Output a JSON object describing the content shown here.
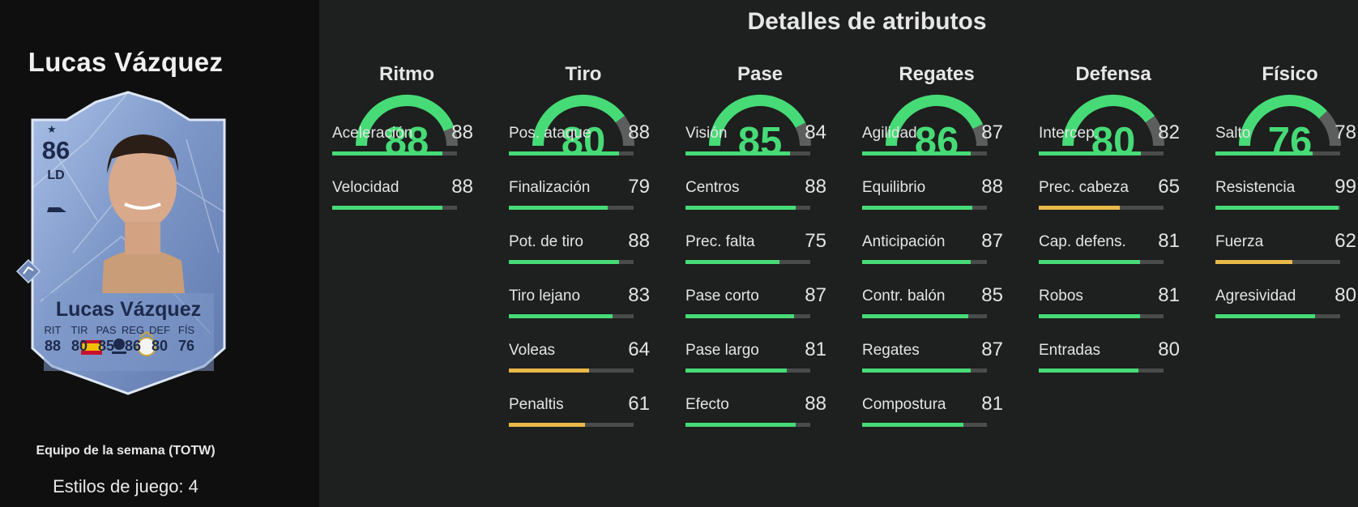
{
  "player": {
    "name": "Lucas Vázquez",
    "rating": "86",
    "position": "LD",
    "card_stats": [
      {
        "label": "RIT",
        "value": "88"
      },
      {
        "label": "TIR",
        "value": "80"
      },
      {
        "label": "PAS",
        "value": "85"
      },
      {
        "label": "REG",
        "value": "86"
      },
      {
        "label": "DEF",
        "value": "80"
      },
      {
        "label": "FÍS",
        "value": "76"
      }
    ],
    "promo": "Equipo de la semana (TOTW)",
    "playstyles": "Estilos de juego: 4"
  },
  "section_title": "Detalles de atributos",
  "colors": {
    "green": "#46db76",
    "yellow": "#e8b948",
    "track": "#4a4c4c",
    "gauge_rest": "#5c5e5e"
  },
  "categories": [
    {
      "name": "Ritmo",
      "value": "88",
      "attrs": [
        {
          "name": "Aceleración",
          "value": "88"
        },
        {
          "name": "Velocidad",
          "value": "88"
        }
      ]
    },
    {
      "name": "Tiro",
      "value": "80",
      "attrs": [
        {
          "name": "Pos. ataque",
          "value": "88"
        },
        {
          "name": "Finalización",
          "value": "79"
        },
        {
          "name": "Pot. de tiro",
          "value": "88"
        },
        {
          "name": "Tiro lejano",
          "value": "83"
        },
        {
          "name": "Voleas",
          "value": "64"
        },
        {
          "name": "Penaltis",
          "value": "61"
        }
      ]
    },
    {
      "name": "Pase",
      "value": "85",
      "attrs": [
        {
          "name": "Visión",
          "value": "84"
        },
        {
          "name": "Centros",
          "value": "88"
        },
        {
          "name": "Prec. falta",
          "value": "75"
        },
        {
          "name": "Pase corto",
          "value": "87"
        },
        {
          "name": "Pase largo",
          "value": "81"
        },
        {
          "name": "Efecto",
          "value": "88"
        }
      ]
    },
    {
      "name": "Regates",
      "value": "86",
      "attrs": [
        {
          "name": "Agilidad",
          "value": "87"
        },
        {
          "name": "Equilibrio",
          "value": "88"
        },
        {
          "name": "Anticipación",
          "value": "87"
        },
        {
          "name": "Contr. balón",
          "value": "85"
        },
        {
          "name": "Regates",
          "value": "87"
        },
        {
          "name": "Compostura",
          "value": "81"
        }
      ]
    },
    {
      "name": "Defensa",
      "value": "80",
      "attrs": [
        {
          "name": "Intercep.",
          "value": "82"
        },
        {
          "name": "Prec. cabeza",
          "value": "65"
        },
        {
          "name": "Cap. defens.",
          "value": "81"
        },
        {
          "name": "Robos",
          "value": "81"
        },
        {
          "name": "Entradas",
          "value": "80"
        }
      ]
    },
    {
      "name": "Físico",
      "value": "76",
      "attrs": [
        {
          "name": "Salto",
          "value": "78"
        },
        {
          "name": "Resistencia",
          "value": "99"
        },
        {
          "name": "Fuerza",
          "value": "62"
        },
        {
          "name": "Agresividad",
          "value": "80"
        }
      ]
    }
  ]
}
